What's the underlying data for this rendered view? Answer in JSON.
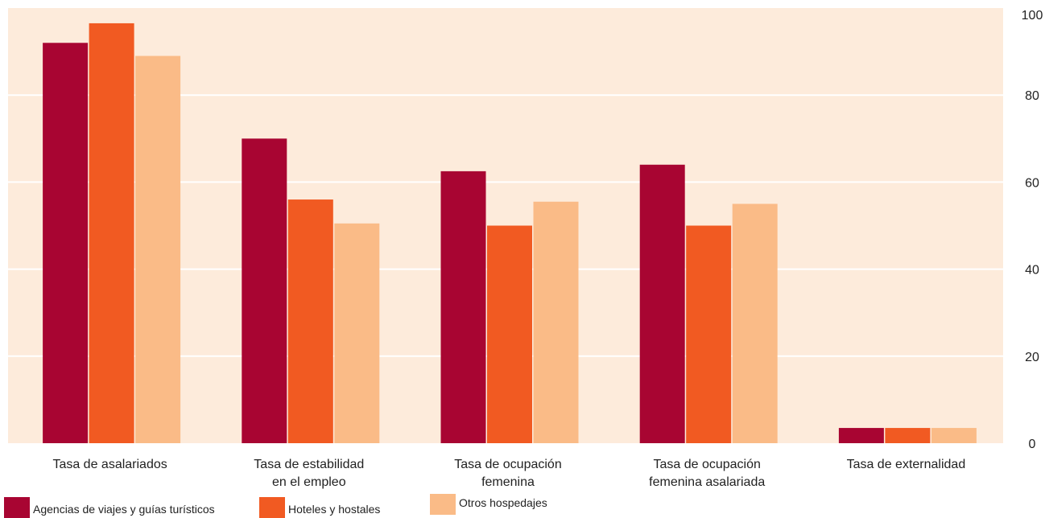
{
  "chart_data": {
    "type": "bar",
    "categories": [
      [
        "Tasa de asalariados"
      ],
      [
        "Tasa de estabilidad",
        "en el empleo"
      ],
      [
        "Tasa de ocupación",
        "femenina"
      ],
      [
        "Tasa de ocupación",
        "femenina asalariada"
      ],
      [
        "Tasa de externalidad"
      ]
    ],
    "series": [
      {
        "name": "Agencias de viajes y guías turísticos",
        "color": "#a80532",
        "values": [
          92,
          70,
          62.5,
          64,
          3.5
        ]
      },
      {
        "name": "Hoteles y hostales",
        "color": "#f15a22",
        "values": [
          96.5,
          56,
          50,
          50,
          3.5
        ]
      },
      {
        "name": "Otros hospedajes",
        "color": "#fabb87",
        "values": [
          89,
          50.5,
          55.5,
          55,
          3.5
        ]
      }
    ],
    "ylim": [
      0,
      100
    ],
    "yticks": [
      0,
      20,
      40,
      60,
      80,
      100
    ],
    "y_axis_side": "right",
    "grid": true,
    "background": "#fdebdb",
    "legend_position": "bottom-left"
  }
}
